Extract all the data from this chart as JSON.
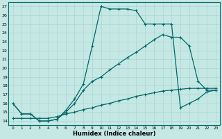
{
  "xlabel": "Humidex (Indice chaleur)",
  "xlim": [
    -0.5,
    23.5
  ],
  "ylim": [
    13.5,
    27.5
  ],
  "xticks": [
    0,
    1,
    2,
    3,
    4,
    5,
    6,
    7,
    8,
    9,
    10,
    11,
    12,
    13,
    14,
    15,
    16,
    17,
    18,
    19,
    20,
    21,
    22,
    23
  ],
  "yticks": [
    14,
    15,
    16,
    17,
    18,
    19,
    20,
    21,
    22,
    23,
    24,
    25,
    26,
    27
  ],
  "bg_color": "#c5e8e5",
  "grid_color": "#aad4d0",
  "line_color": "#006868",
  "line1_x": [
    0,
    1,
    2,
    3,
    4,
    5,
    6,
    7,
    8,
    9,
    10,
    11,
    12,
    13,
    14,
    15,
    16,
    17,
    18,
    19,
    20,
    21,
    22,
    23
  ],
  "line1_y": [
    16.0,
    14.8,
    14.8,
    14.0,
    14.0,
    14.2,
    15.0,
    16.0,
    17.5,
    18.5,
    19.0,
    19.8,
    20.5,
    21.2,
    21.8,
    22.5,
    23.2,
    23.8,
    23.5,
    23.5,
    22.5,
    18.5,
    17.5,
    17.5
  ],
  "line2_x": [
    0,
    1,
    2,
    3,
    4,
    5,
    6,
    7,
    8,
    9,
    10,
    11,
    12,
    13,
    14,
    15,
    16,
    17,
    18,
    19,
    20,
    21,
    22,
    23
  ],
  "line2_y": [
    16.0,
    14.8,
    14.8,
    14.0,
    14.0,
    14.2,
    15.2,
    16.5,
    18.2,
    22.5,
    27.0,
    26.7,
    26.7,
    26.7,
    26.5,
    25.0,
    25.0,
    25.0,
    25.0,
    15.5,
    16.0,
    16.5,
    17.3,
    17.5
  ],
  "line3_x": [
    0,
    1,
    2,
    3,
    4,
    5,
    6,
    7,
    8,
    9,
    10,
    11,
    12,
    13,
    14,
    15,
    16,
    17,
    18,
    19,
    20,
    21,
    22,
    23
  ],
  "line3_y": [
    14.3,
    14.3,
    14.3,
    14.3,
    14.3,
    14.5,
    14.8,
    15.0,
    15.3,
    15.5,
    15.8,
    16.0,
    16.3,
    16.5,
    16.8,
    17.0,
    17.2,
    17.4,
    17.5,
    17.6,
    17.7,
    17.7,
    17.7,
    17.7
  ]
}
